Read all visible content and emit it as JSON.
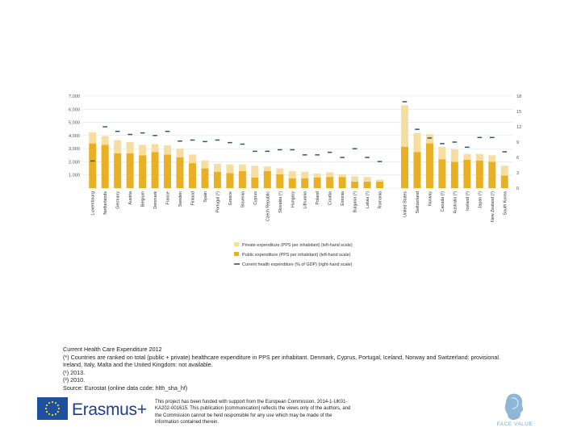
{
  "chart_data": {
    "type": "bar",
    "stacked": true,
    "categories": [
      "Luxembourg",
      "Netherlands",
      "Germany",
      "Austria",
      "Belgium",
      "Denmark",
      "France",
      "Sweden",
      "Finland",
      "Spain",
      "Portugal (¹)",
      "Greece",
      "Slovenia",
      "Cyprus",
      "Czech Republic",
      "Slovakia (¹)",
      "Hungary",
      "Lithuania",
      "Poland",
      "Croatia",
      "Estonia",
      "Bulgaria (¹)",
      "Latvia (¹)",
      "Romania",
      "United States",
      "Switzerland",
      "Norway",
      "Canada (²)",
      "Australia (¹)",
      "Iceland (¹)",
      "Japan (¹)",
      "New Zealand (¹)",
      "South Korea"
    ],
    "series": [
      {
        "name": "Public expenditure (PPS per inhabitant) (left-hand scale)",
        "color": "#e8b024",
        "values": [
          3400,
          3300,
          2650,
          2650,
          2500,
          2750,
          2550,
          2350,
          1900,
          1500,
          1250,
          1150,
          1300,
          800,
          1300,
          1050,
          750,
          750,
          800,
          850,
          850,
          500,
          500,
          500,
          3150,
          2750,
          3400,
          2200,
          2000,
          2150,
          2100,
          2000,
          950
        ]
      },
      {
        "name": "Private expenditure (PPS per inhabitant) (left-hand scale)",
        "color": "#f6dea0",
        "values": [
          850,
          650,
          1000,
          850,
          800,
          600,
          700,
          650,
          650,
          600,
          600,
          650,
          500,
          900,
          350,
          450,
          550,
          500,
          300,
          350,
          200,
          400,
          350,
          150,
          3150,
          1450,
          700,
          950,
          950,
          450,
          500,
          500,
          750
        ]
      },
      {
        "name": "Current health expenditure (% of GDP) (right-hand scale)",
        "color": "#2e5872",
        "axis": "right",
        "marker": "dash",
        "values": [
          5.3,
          12.0,
          11.1,
          10.5,
          10.8,
          10.3,
          11.1,
          9.2,
          9.4,
          9.1,
          9.4,
          8.9,
          8.6,
          7.2,
          7.2,
          7.5,
          7.5,
          6.5,
          6.5,
          7.0,
          6.0,
          7.7,
          6.0,
          5.2,
          16.9,
          11.5,
          9.8,
          8.7,
          9.0,
          8.0,
          9.9,
          9.9,
          7.1
        ]
      }
    ],
    "y_left": {
      "min": 0,
      "max": 7000,
      "ticks": [
        "",
        "1,000",
        "2,000",
        "3,000",
        "4,000",
        "5,000",
        "6,000",
        "7,000"
      ]
    },
    "y_right": {
      "min": 0,
      "max": 18,
      "ticks": [
        "0",
        "3",
        "6",
        "9",
        "12",
        "15",
        "18"
      ]
    },
    "gap_after_index": 23,
    "legend": {
      "position": "bottom",
      "items": [
        "Private expenditure (PPS per inhabitant) (left-hand scale)",
        "Public expenditure (PPS per inhabitant) (left-hand scale)",
        "Current health expenditure (% of GDP) (right-hand scale)"
      ]
    },
    "gridlines": true
  },
  "caption": {
    "title": "Current Health Care Expenditure 2012",
    "lines": [
      "(*) Countries are ranked on total (public + private) healthcare expenditure in PPS per inhabitant. Denmark, Cyprus, Portugal, Iceland, Norway and Switzerland: provisional.",
      "Ireland, Italy, Malta and the United Kingdom: not available.",
      "(¹) 2013.",
      "(²) 2010.",
      "Source: Eurostat (online data code: hlth_sha_hf)"
    ]
  },
  "footer": {
    "logo_text": "Erasmus+",
    "disclaimer": "This project has been funded with support from the European Commission. 2014-1-UK01-KA202-001615. This publication [communication] reflects the views only of the authors, and the Commission cannot be held responsible for any use which may be made of the information contained therein.",
    "brand_text": "FACE VALUE"
  },
  "colors": {
    "grid": "#e2e2e2",
    "axis": "#c0c0c0",
    "flag": "#1f4fa0",
    "star": "#ffde00"
  }
}
